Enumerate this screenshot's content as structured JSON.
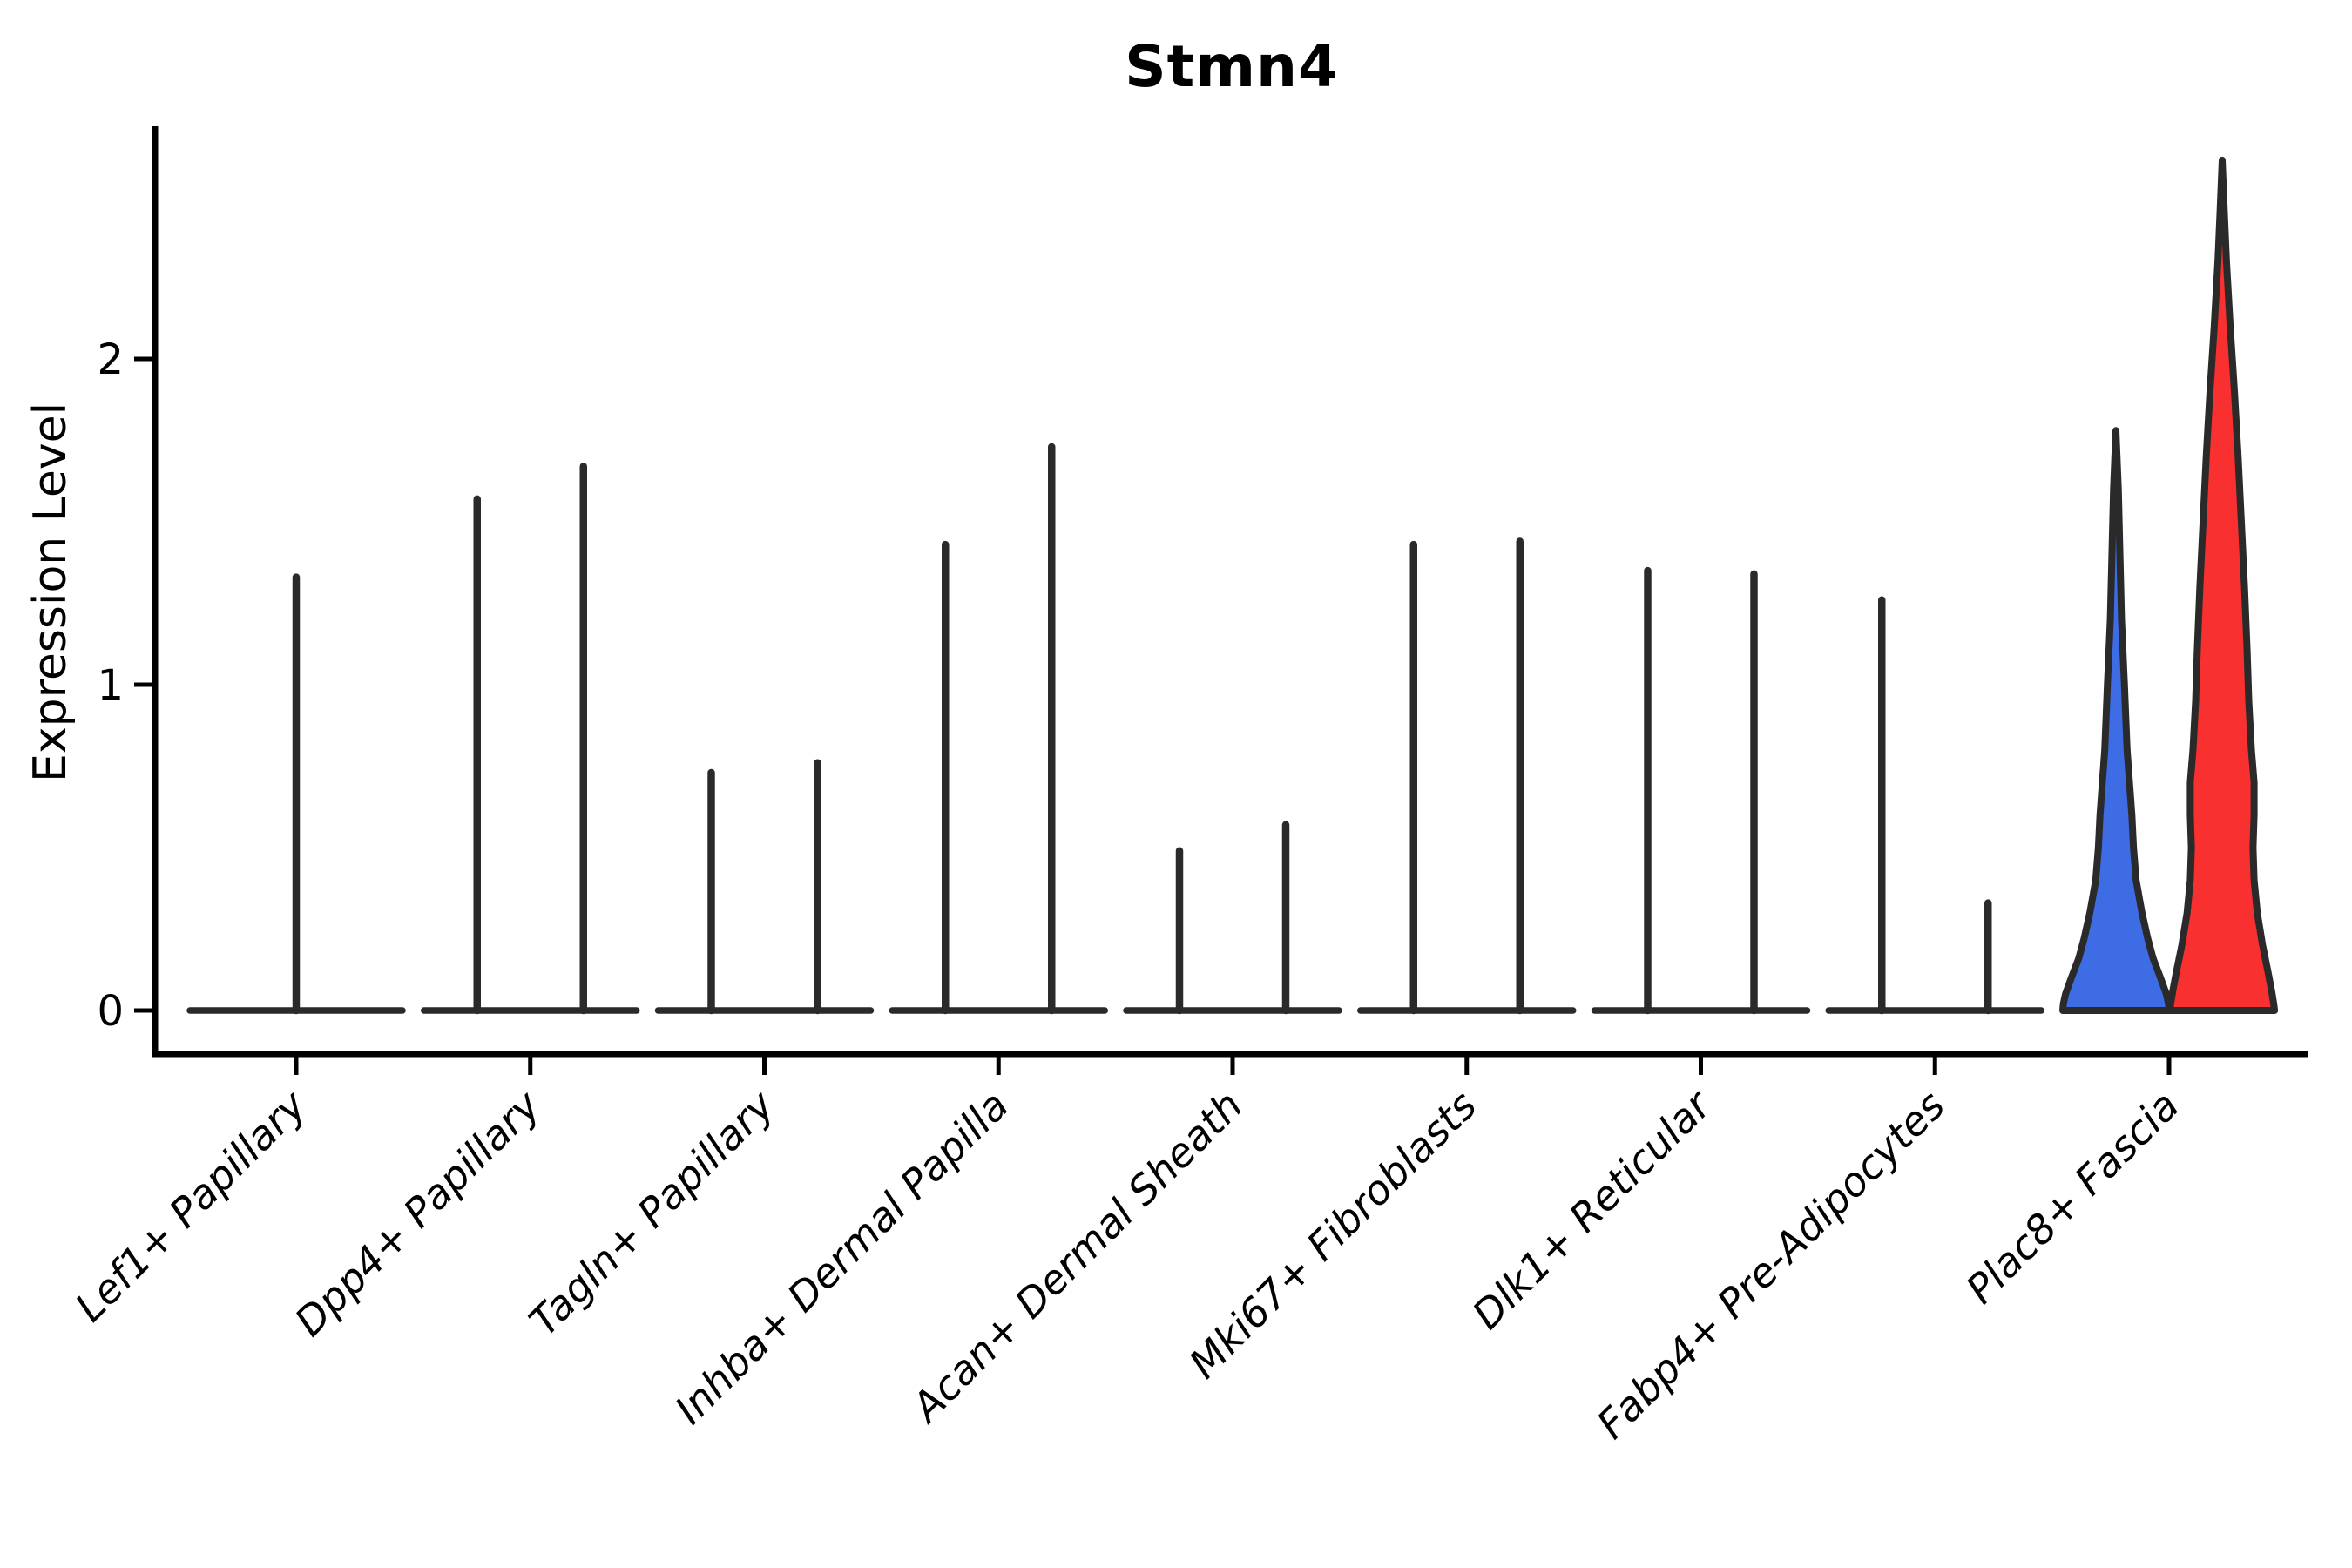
{
  "chart_data": {
    "type": "violin",
    "title": "Stmn4",
    "ylabel": "Expression Level",
    "xlabel": "",
    "yticks": [
      0,
      1,
      2
    ],
    "ylim": [
      0,
      2.72
    ],
    "grid": false,
    "legend_position": "none",
    "styles": {
      "outline_color": "#2a2a2a",
      "axis_color": "#000000",
      "background": "#ffffff",
      "blue_fill": "#3E6CE5",
      "red_fill": "#F93030"
    },
    "categories": [
      {
        "label": "Lef1+ Papillary",
        "violins": [
          {
            "position": "center",
            "type": "spike",
            "max": 1.33
          }
        ]
      },
      {
        "label": "Dpp4+ Papillary",
        "violins": [
          {
            "position": "left",
            "type": "spike",
            "max": 1.57
          },
          {
            "position": "right",
            "type": "spike",
            "max": 1.67
          }
        ]
      },
      {
        "label": "Tagln+ Papillary",
        "violins": [
          {
            "position": "left",
            "type": "spike",
            "max": 0.73
          },
          {
            "position": "right",
            "type": "spike",
            "max": 0.76
          }
        ]
      },
      {
        "label": "Inhba+ Dermal Papilla",
        "violins": [
          {
            "position": "left",
            "type": "spike",
            "max": 1.43
          },
          {
            "position": "right",
            "type": "spike",
            "max": 1.73
          }
        ]
      },
      {
        "label": "Acan+ Dermal Sheath",
        "violins": [
          {
            "position": "left",
            "type": "spike",
            "max": 0.49
          },
          {
            "position": "right",
            "type": "spike",
            "max": 0.57
          }
        ]
      },
      {
        "label": "Mki67+ Fibroblasts",
        "violins": [
          {
            "position": "left",
            "type": "spike",
            "max": 1.43
          },
          {
            "position": "right",
            "type": "spike",
            "max": 1.44
          }
        ]
      },
      {
        "label": "Dlk1+ Reticular",
        "violins": [
          {
            "position": "left",
            "type": "spike",
            "max": 1.35
          },
          {
            "position": "right",
            "type": "spike",
            "max": 1.34
          }
        ]
      },
      {
        "label": "Fabp4+ Pre-Adipocytes",
        "violins": [
          {
            "position": "left",
            "type": "spike",
            "max": 1.26
          },
          {
            "position": "right",
            "type": "spike",
            "max": 0.33
          }
        ]
      },
      {
        "label": "Plac8+ Fascia",
        "violins": [
          {
            "position": "left",
            "type": "violin",
            "max": 1.78,
            "fill": "#3E6CE5",
            "profile": [
              [
                1.78,
                0.0
              ],
              [
                1.6,
                0.045
              ],
              [
                1.4,
                0.075
              ],
              [
                1.2,
                0.105
              ],
              [
                1.0,
                0.16
              ],
              [
                0.8,
                0.21
              ],
              [
                0.6,
                0.3
              ],
              [
                0.5,
                0.33
              ],
              [
                0.4,
                0.38
              ],
              [
                0.3,
                0.49
              ],
              [
                0.22,
                0.6
              ],
              [
                0.16,
                0.7
              ],
              [
                0.1,
                0.84
              ],
              [
                0.05,
                0.95
              ],
              [
                0.02,
                0.99
              ],
              [
                0.0,
                1.0
              ]
            ]
          },
          {
            "position": "right",
            "type": "violin",
            "max": 2.61,
            "fill": "#F93030",
            "profile": [
              [
                2.61,
                0.0
              ],
              [
                2.45,
                0.04
              ],
              [
                2.3,
                0.08
              ],
              [
                2.1,
                0.15
              ],
              [
                1.9,
                0.23
              ],
              [
                1.7,
                0.3
              ],
              [
                1.5,
                0.36
              ],
              [
                1.3,
                0.42
              ],
              [
                1.1,
                0.47
              ],
              [
                0.95,
                0.5
              ],
              [
                0.8,
                0.55
              ],
              [
                0.7,
                0.6
              ],
              [
                0.6,
                0.6
              ],
              [
                0.5,
                0.58
              ],
              [
                0.4,
                0.6
              ],
              [
                0.3,
                0.66
              ],
              [
                0.2,
                0.76
              ],
              [
                0.12,
                0.86
              ],
              [
                0.06,
                0.93
              ],
              [
                0.02,
                0.97
              ],
              [
                0.0,
                0.985
              ]
            ]
          }
        ]
      }
    ]
  }
}
